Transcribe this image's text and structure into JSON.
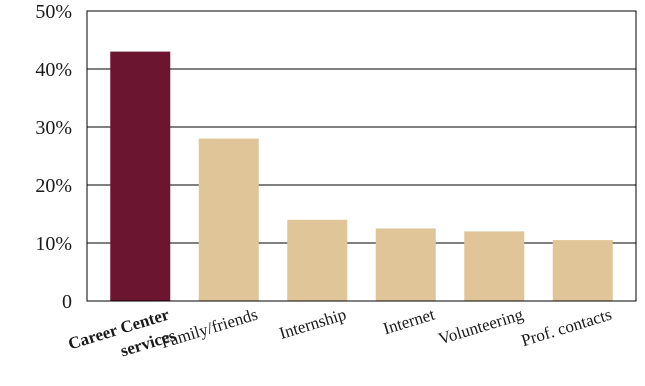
{
  "chart_data": {
    "type": "bar",
    "categories": [
      [
        "Career Center",
        "services"
      ],
      [
        "Family/friends"
      ],
      [
        "Internship"
      ],
      [
        "Internet"
      ],
      [
        "Volunteering"
      ],
      [
        "Prof. contacts"
      ]
    ],
    "values": [
      43,
      28,
      14,
      12.5,
      12,
      10.5
    ],
    "highlight_index": 0,
    "ylim": [
      0,
      50
    ],
    "yticks": [
      0,
      10,
      20,
      30,
      40,
      50
    ],
    "ytick_labels": [
      "0",
      "10%",
      "20%",
      "30%",
      "40%",
      "50%"
    ],
    "grid": true,
    "colors": {
      "highlight": "#6b1530",
      "bar": "#dfc597",
      "grid": "#000000"
    }
  }
}
